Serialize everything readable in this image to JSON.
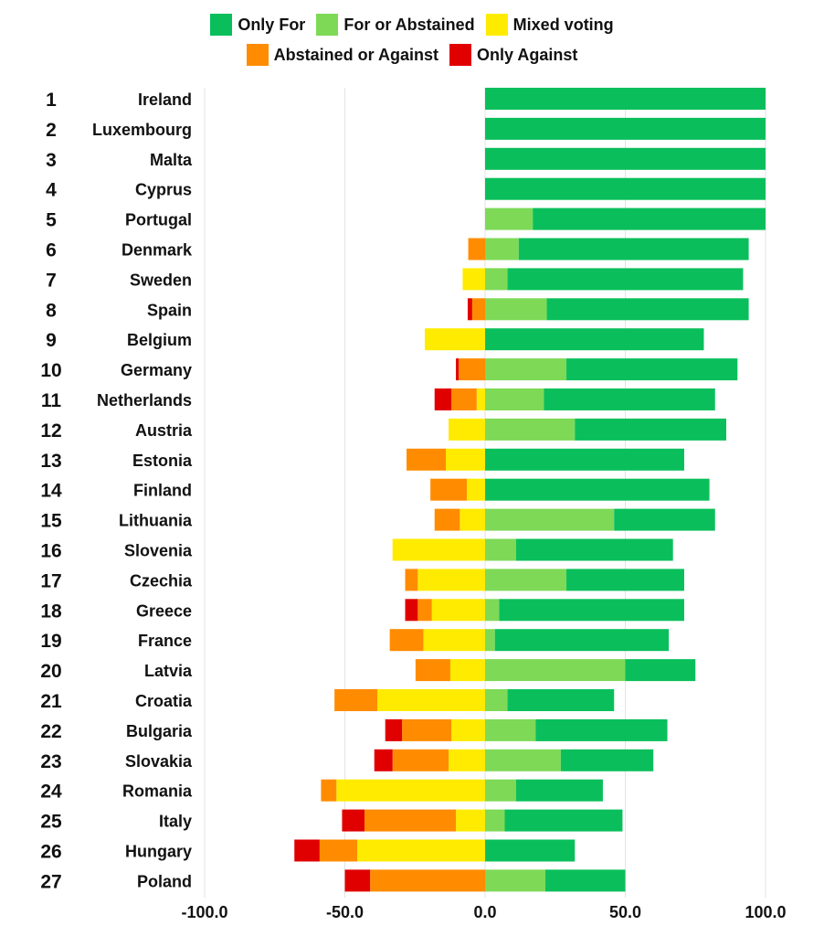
{
  "chart_data": {
    "type": "bar",
    "orientation": "horizontal-diverging-stacked",
    "xlim": [
      -100,
      100
    ],
    "xticks": [
      -100,
      -50,
      0,
      50,
      100
    ],
    "xtick_labels": [
      "-100.0",
      "-50.0",
      "0.0",
      "50.0",
      "100.0"
    ],
    "grid": true,
    "legend_placement": "top",
    "legend": [
      {
        "key": "only_for",
        "label": "Only For",
        "color": "#0abf5b"
      },
      {
        "key": "for_or_abstained",
        "label": "For or Abstained",
        "color": "#7ed957"
      },
      {
        "key": "mixed",
        "label": "Mixed voting",
        "color": "#ffeb00"
      },
      {
        "key": "abstained_or_against",
        "label": "Abstained or Against",
        "color": "#ff8c00"
      },
      {
        "key": "only_against",
        "label": "Only Against",
        "color": "#e00000"
      }
    ],
    "ranks": [
      "1",
      "2",
      "3",
      "4",
      "5",
      "6",
      "7",
      "8",
      "9",
      "10",
      "11",
      "12",
      "13",
      "14",
      "15",
      "16",
      "17",
      "18",
      "19",
      "20",
      "21",
      "22",
      "23",
      "24",
      "25",
      "26",
      "27"
    ],
    "categories": [
      "Ireland",
      "Luxembourg",
      "Malta",
      "Cyprus",
      "Portugal",
      "Denmark",
      "Sweden",
      "Spain",
      "Belgium",
      "Germany",
      "Netherlands",
      "Austria",
      "Estonia",
      "Finland",
      "Lithuania",
      "Slovenia",
      "Czechia",
      "Greece",
      "France",
      "Latvia",
      "Croatia",
      "Bulgaria",
      "Slovakia",
      "Romania",
      "Italy",
      "Hungary",
      "Poland"
    ],
    "series": [
      {
        "name": "For or Abstained",
        "key": "for_or_abstained",
        "side": "positive",
        "values": [
          0,
          0,
          0,
          0,
          17,
          12,
          8,
          22,
          0,
          29,
          21,
          32,
          0,
          0,
          46,
          11,
          29,
          5,
          3.5,
          50,
          8,
          18,
          27,
          11,
          7,
          0,
          21.5
        ]
      },
      {
        "name": "Only For",
        "key": "only_for",
        "side": "positive",
        "values": [
          100,
          100,
          100,
          100,
          83,
          82,
          84,
          72,
          78,
          61,
          61,
          54,
          71,
          80,
          36,
          56,
          42,
          66,
          62,
          25,
          38,
          47,
          33,
          31,
          42,
          32,
          28.5
        ]
      },
      {
        "name": "Mixed voting",
        "key": "mixed",
        "side": "negative",
        "values": [
          0,
          0,
          0,
          0,
          0,
          0,
          8,
          0,
          21.5,
          0,
          3,
          13,
          14,
          6.5,
          9,
          33,
          24,
          19,
          22,
          12.4,
          38.4,
          12,
          13,
          53,
          10.4,
          45.6,
          0
        ]
      },
      {
        "name": "Abstained or Against",
        "key": "abstained_or_against",
        "side": "negative",
        "values": [
          0,
          0,
          0,
          0,
          0,
          6,
          0,
          4.6,
          0,
          9.4,
          9,
          0,
          14,
          13,
          9,
          0,
          4.5,
          5,
          12,
          12.4,
          15.3,
          17.6,
          20,
          5.5,
          32.6,
          13.4,
          41
        ]
      },
      {
        "name": "Only Against",
        "key": "only_against",
        "side": "negative",
        "values": [
          0,
          0,
          0,
          0,
          0,
          0,
          0,
          1.6,
          0,
          1,
          6,
          0,
          0,
          0,
          0,
          0,
          0,
          4.5,
          0,
          0,
          0,
          6,
          6.5,
          0,
          8,
          9,
          9
        ]
      }
    ]
  }
}
